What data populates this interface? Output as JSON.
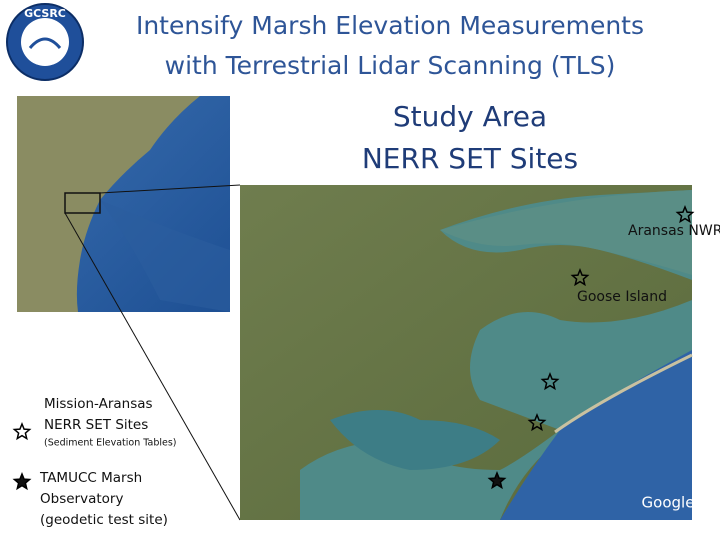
{
  "header": {
    "logo": "GCSRC",
    "title_lines": [
      "Intensify Marsh Elevation Measurements",
      "with Terrestrial Lidar Scanning (TLS)"
    ]
  },
  "heading": {
    "lines": [
      "Study Area",
      "NERR SET Sites"
    ]
  },
  "map": {
    "sites": [
      "Aransas NWR",
      "Goose Island"
    ],
    "attribution": "Google"
  },
  "legend": {
    "items": [
      {
        "lines": [
          "Mission-Aransas",
          "NERR SET Sites"
        ],
        "note": "(Sediment Elevation Tables)"
      },
      {
        "lines": [
          "TAMUCC Marsh",
          "Observatory",
          "(geodetic test site)"
        ]
      }
    ]
  }
}
